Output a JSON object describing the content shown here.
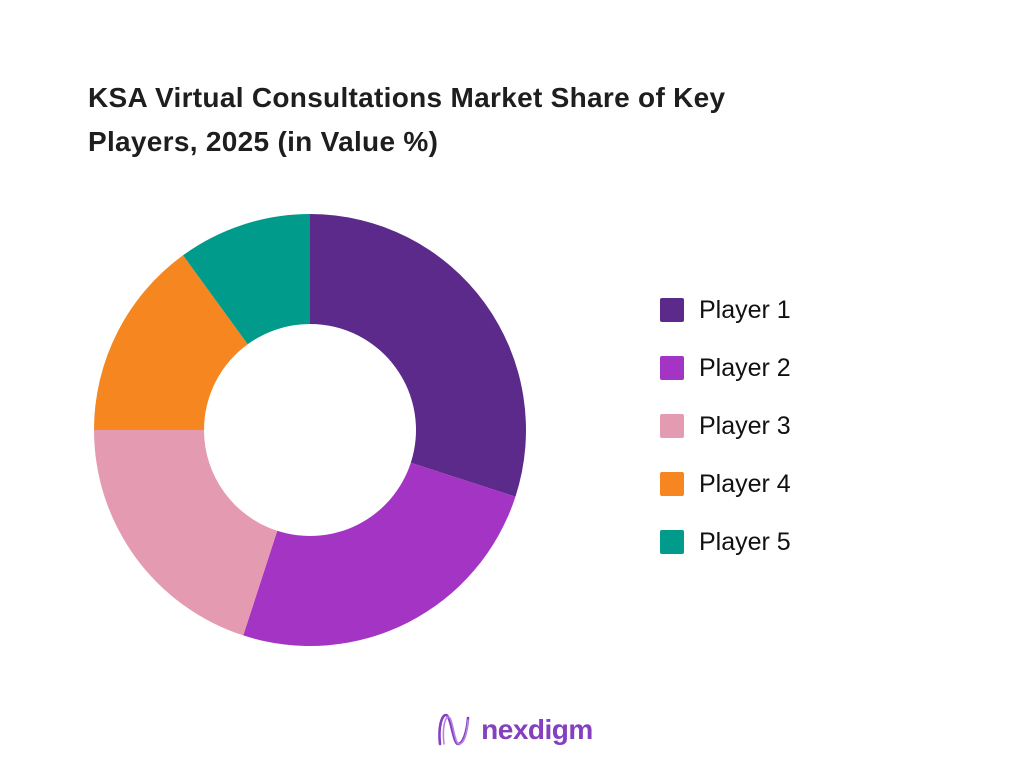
{
  "title": {
    "text": "KSA Virtual Consultations Market Share of Key Players, 2025 (in Value %)"
  },
  "chart_data": {
    "type": "pie",
    "subtype": "donut",
    "title": "KSA Virtual Consultations Market Share of Key Players, 2025 (in Value %)",
    "unit": "% of market value",
    "start_angle_deg": 0,
    "direction": "clockwise",
    "inner_radius_ratio": 0.49,
    "legend_position": "right",
    "grid": false,
    "categories": [
      "Player 1",
      "Player 2",
      "Player 3",
      "Player 4",
      "Player 5"
    ],
    "values": [
      30,
      25,
      20,
      15,
      10
    ],
    "colors": [
      "#5B2A8A",
      "#A434C4",
      "#E49AB0",
      "#F6861F",
      "#009B8A"
    ]
  },
  "legend": {
    "items": [
      {
        "label": "Player 1",
        "color": "#5B2A8A"
      },
      {
        "label": "Player 2",
        "color": "#A434C4"
      },
      {
        "label": "Player 3",
        "color": "#E49AB0"
      },
      {
        "label": "Player 4",
        "color": "#F6861F"
      },
      {
        "label": "Player 5",
        "color": "#009B8A"
      }
    ]
  },
  "footer": {
    "brand": "nexdigm",
    "brand_color": "#8440BF"
  }
}
